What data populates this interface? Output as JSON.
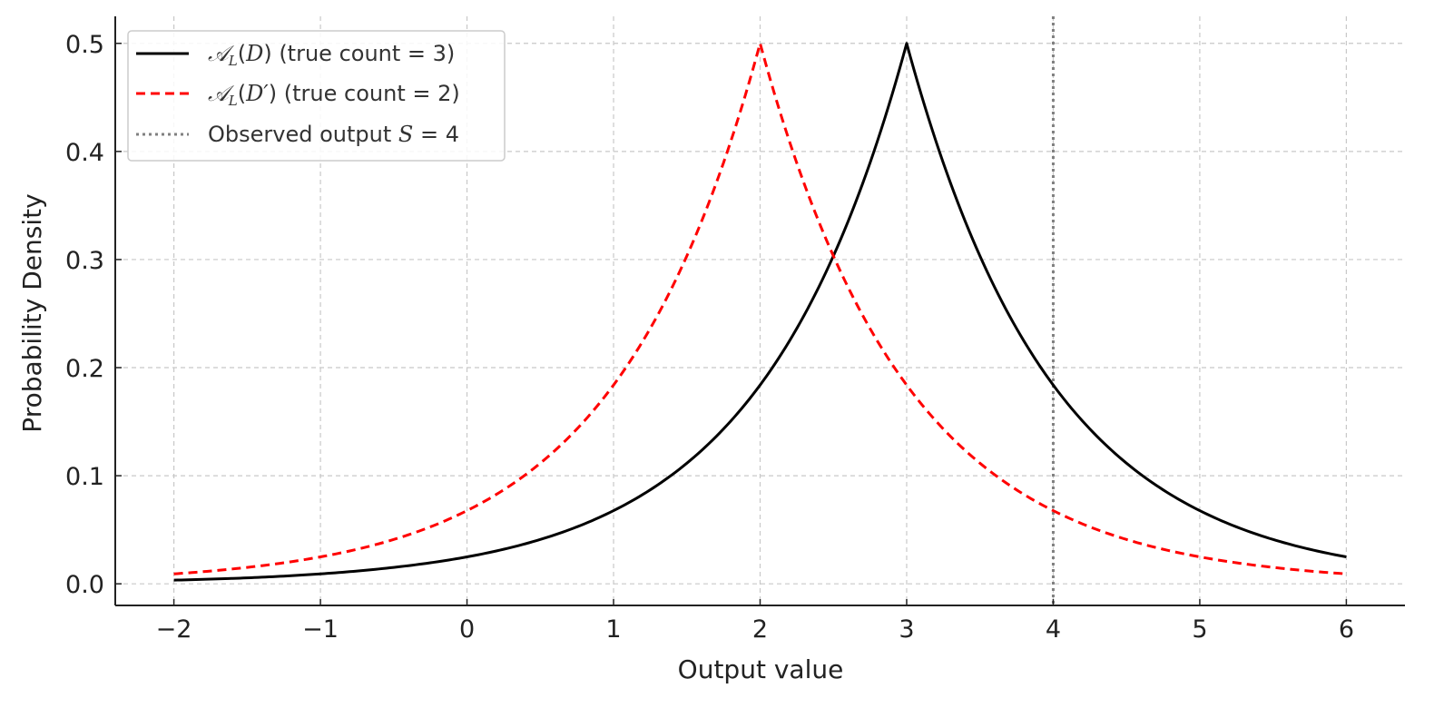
{
  "chart_data": {
    "type": "line",
    "xlabel": "Output value",
    "ylabel": "Probability Density",
    "xlim": [
      -2.4,
      6.4
    ],
    "ylim": [
      -0.02,
      0.525
    ],
    "x_ticks": [
      -2,
      -1,
      0,
      1,
      2,
      3,
      4,
      5,
      6
    ],
    "x_tick_labels": [
      "−2",
      "−1",
      "0",
      "1",
      "2",
      "3",
      "4",
      "5",
      "6"
    ],
    "y_ticks": [
      0.0,
      0.1,
      0.2,
      0.3,
      0.4,
      0.5
    ],
    "y_tick_labels": [
      "0.0",
      "0.1",
      "0.2",
      "0.3",
      "0.4",
      "0.5"
    ],
    "grid": true,
    "legend_position": "top-left",
    "series": [
      {
        "name": "𝒜_L(D) (true count = 3)",
        "legend_parts": {
          "script": "𝒜",
          "sub": "L",
          "open": "(",
          "arg": "D",
          "close": ")",
          "rest": " (true count = 3)"
        },
        "color": "#000000",
        "style": "solid",
        "x": [
          -2,
          -1.5,
          -1,
          -0.5,
          0,
          0.5,
          1,
          1.5,
          2,
          2.5,
          3,
          3.5,
          4,
          4.5,
          5,
          5.5,
          6
        ],
        "y": [
          0.0034,
          0.0055,
          0.0092,
          0.0152,
          0.0249,
          0.041,
          0.0677,
          0.1116,
          0.1839,
          0.3033,
          0.5,
          0.3033,
          0.1839,
          0.1116,
          0.0677,
          0.041,
          0.0249
        ]
      },
      {
        "name": "𝒜_L(D′) (true count = 2)",
        "legend_parts": {
          "script": "𝒜",
          "sub": "L",
          "open": "(",
          "arg": "D′",
          "close": ")",
          "rest": " (true count = 2)"
        },
        "color": "#ff0000",
        "style": "dashed",
        "x": [
          -2,
          -1.5,
          -1,
          -0.5,
          0,
          0.5,
          1,
          1.5,
          2,
          2.5,
          3,
          3.5,
          4,
          4.5,
          5,
          5.5,
          6
        ],
        "y": [
          0.0092,
          0.0152,
          0.0249,
          0.041,
          0.0677,
          0.1116,
          0.1839,
          0.3033,
          0.5,
          0.3033,
          0.1839,
          0.1116,
          0.0677,
          0.041,
          0.0249,
          0.0152,
          0.0092
        ]
      }
    ],
    "vlines": [
      {
        "name": "Observed output S = 4",
        "legend_parts": {
          "text": "Observed output ",
          "var": "S",
          "eq": " = 4"
        },
        "x": 4,
        "color": "#808080",
        "style": "dotted"
      }
    ]
  }
}
